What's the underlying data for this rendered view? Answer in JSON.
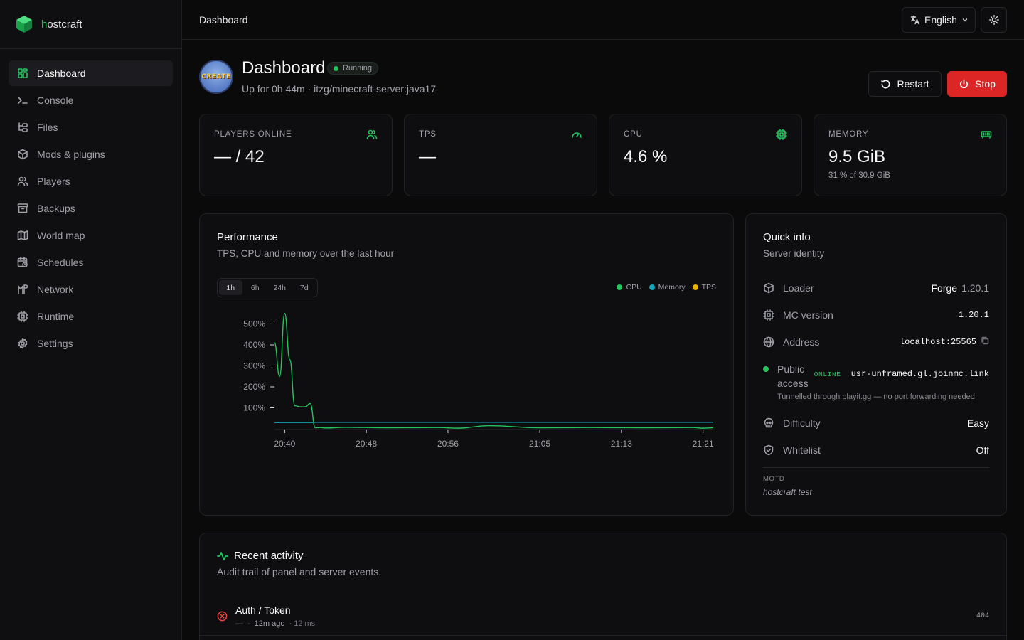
{
  "brand": {
    "name_first": "h",
    "name_rest": "ostcraft"
  },
  "sidebar": {
    "items": [
      {
        "label": "Dashboard",
        "icon": "dashboard-icon",
        "active": true
      },
      {
        "label": "Console",
        "icon": "terminal-icon"
      },
      {
        "label": "Files",
        "icon": "folder-tree-icon"
      },
      {
        "label": "Mods & plugins",
        "icon": "package-icon"
      },
      {
        "label": "Players",
        "icon": "users-icon"
      },
      {
        "label": "Backups",
        "icon": "archive-icon"
      },
      {
        "label": "World map",
        "icon": "map-icon"
      },
      {
        "label": "Schedules",
        "icon": "calendar-clock-icon"
      },
      {
        "label": "Network",
        "icon": "network-icon"
      },
      {
        "label": "Runtime",
        "icon": "cpu-icon"
      },
      {
        "label": "Settings",
        "icon": "gear-icon"
      }
    ]
  },
  "topbar": {
    "breadcrumb": "Dashboard",
    "language": "English"
  },
  "header": {
    "avatar_text": "CREATE",
    "title": "Dashboard",
    "status": "Running",
    "subtitle": "Up for 0h 44m · itzg/minecraft-server:java17",
    "restart_label": "Restart",
    "stop_label": "Stop"
  },
  "stats": [
    {
      "label": "PLAYERS ONLINE",
      "value": "— / 42",
      "sub": "",
      "icon": "users-icon"
    },
    {
      "label": "TPS",
      "value": "—",
      "sub": "",
      "icon": "gauge-icon"
    },
    {
      "label": "CPU",
      "value": "4.6 %",
      "sub": "",
      "icon": "cpu-icon"
    },
    {
      "label": "MEMORY",
      "value": "9.5 GiB",
      "sub": "31 % of 30.9 GiB",
      "icon": "memory-icon"
    }
  ],
  "performance": {
    "title": "Performance",
    "subtitle": "TPS, CPU and memory over the last hour",
    "ranges": [
      "1h",
      "6h",
      "24h",
      "7d"
    ],
    "active_range": "1h",
    "legend": [
      {
        "name": "CPU",
        "color": "#22c55e"
      },
      {
        "name": "Memory",
        "color": "#14a3b8"
      },
      {
        "name": "TPS",
        "color": "#eab308"
      }
    ]
  },
  "chart_data": {
    "type": "line",
    "x_ticks": [
      "20:40",
      "20:48",
      "20:56",
      "21:05",
      "21:13",
      "21:21"
    ],
    "y_ticks": [
      "100%",
      "200%",
      "300%",
      "400%",
      "500%"
    ],
    "ylim": [
      0,
      560
    ],
    "x": [
      "20:39",
      "20:39.5",
      "20:40",
      "20:40.5",
      "20:41",
      "20:41.5",
      "20:42",
      "20:42.5",
      "20:43",
      "20:43.5",
      "20:44",
      "20:46",
      "20:50",
      "20:55",
      "20:57",
      "21:00",
      "21:05",
      "21:10",
      "21:15",
      "21:20",
      "21:21",
      "21:22"
    ],
    "series": [
      {
        "name": "CPU",
        "color": "#22c55e",
        "values": [
          410,
          250,
          550,
          330,
          110,
          105,
          105,
          120,
          5,
          6,
          4,
          7,
          5,
          6,
          3,
          15,
          5,
          6,
          5,
          6,
          3,
          5
        ]
      },
      {
        "name": "Memory",
        "color": "#14a3b8",
        "values": [
          30,
          30,
          30,
          30,
          30,
          30,
          30,
          30,
          31,
          31,
          31,
          31,
          31,
          31,
          31,
          31,
          31,
          31,
          31,
          31,
          31,
          31
        ]
      }
    ]
  },
  "quick_info": {
    "title": "Quick info",
    "subtitle": "Server identity",
    "loader_label": "Loader",
    "loader_value": "Forge",
    "loader_version": "1.20.1",
    "mc_label": "MC version",
    "mc_value": "1.20.1",
    "address_label": "Address",
    "address_value": "localhost:25565",
    "public_label_1": "Public",
    "public_label_2": "access",
    "public_status": "ONLINE",
    "public_value": "usr-unframed.gl.joinmc.link",
    "tunnel_note": "Tunnelled through playit.gg — no port forwarding needed",
    "difficulty_label": "Difficulty",
    "difficulty_value": "Easy",
    "whitelist_label": "Whitelist",
    "whitelist_value": "Off",
    "motd_label": "MOTD",
    "motd_value": "hostcraft test"
  },
  "activity": {
    "title": "Recent activity",
    "subtitle": "Audit trail of panel and server events.",
    "rows": [
      {
        "name": "Auth / Token",
        "actor": "—",
        "sep": "·",
        "ago": "12m ago",
        "duration": "· 12 ms",
        "code": "404"
      }
    ]
  }
}
